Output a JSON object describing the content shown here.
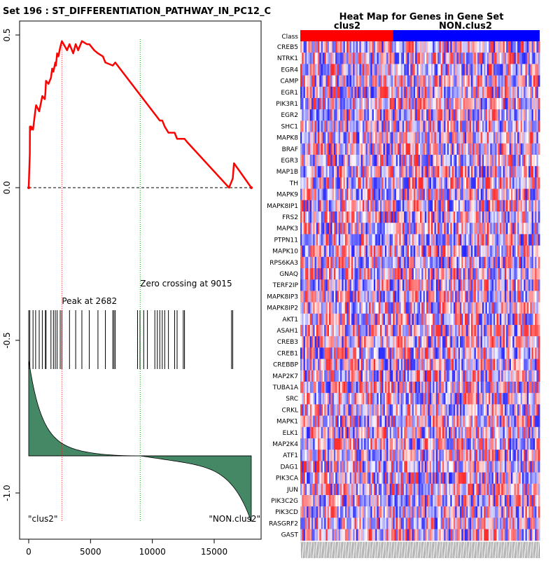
{
  "chart_data": [
    {
      "type": "line",
      "title": "Set  196 : ST_DIFFERENTIATION_PATHWAY_IN_PC12_C",
      "xlabel": "",
      "ylabel": "",
      "xlim": [
        0,
        18000
      ],
      "ylim": [
        -1.15,
        0.5
      ],
      "x_ticks": [
        0,
        5000,
        10000,
        15000
      ],
      "y_ticks": [
        0.5,
        0.0,
        -0.5,
        -1.0
      ],
      "y_tick_labels": [
        "0.5",
        "0.0",
        "-0.5",
        "-1.0"
      ],
      "enrichment_score": {
        "x": [
          0,
          90,
          100,
          150,
          190,
          200,
          350,
          560,
          600,
          850,
          1100,
          1300,
          1350,
          1400,
          1600,
          1800,
          1900,
          2000,
          2100,
          2150,
          2200,
          2300,
          2400,
          2550,
          2682,
          3100,
          3300,
          3600,
          3800,
          4000,
          4300,
          4700,
          4900,
          5300,
          5600,
          6000,
          6200,
          6800,
          7000,
          10600,
          10800,
          11000,
          11300,
          11800,
          12000,
          12500,
          12600,
          12800,
          16200,
          16500,
          16600,
          18000
        ],
        "y": [
          0.0,
          0.11,
          0.2,
          0.2,
          0.19,
          0.2,
          0.19,
          0.26,
          0.27,
          0.25,
          0.3,
          0.29,
          0.31,
          0.35,
          0.34,
          0.36,
          0.39,
          0.38,
          0.4,
          0.41,
          0.4,
          0.44,
          0.43,
          0.46,
          0.48,
          0.45,
          0.47,
          0.44,
          0.47,
          0.45,
          0.48,
          0.47,
          0.47,
          0.45,
          0.44,
          0.43,
          0.41,
          0.4,
          0.41,
          0.22,
          0.22,
          0.2,
          0.18,
          0.18,
          0.16,
          0.16,
          0.16,
          0.15,
          0.0,
          0.03,
          0.08,
          0.0
        ]
      },
      "zero_line": 0.0,
      "peak": {
        "x": 2682,
        "label": "Peak at 2682"
      },
      "zero_crossing": {
        "x": 9015,
        "label": "Zero crossing at 9015"
      },
      "hit_positions": [
        0,
        90,
        350,
        560,
        850,
        1100,
        1350,
        1400,
        1800,
        2000,
        2150,
        2300,
        2550,
        2682,
        3300,
        3800,
        4300,
        4900,
        5600,
        6200,
        6800,
        6900,
        7000,
        8800,
        9000,
        9300,
        9600,
        10200,
        10400,
        10600,
        10800,
        11000,
        11300,
        11800,
        12000,
        12500,
        12600,
        16400,
        16500
      ],
      "ranked_metric": {
        "start": 0.3,
        "mid_zero_at": 9015,
        "end": -0.95
      },
      "group_labels": [
        "\"clus2\"",
        "\"NON.clus2\""
      ],
      "colors": {
        "es_line": "#ff0000",
        "peak_line": "#ff0000",
        "zero_cross_line": "#00aa00",
        "metric_fill": "#448866",
        "hits": "#000000"
      }
    },
    {
      "type": "heatmap",
      "title": "Heat Map for Genes in Gene Set",
      "class_row_label": "Class",
      "classes": [
        {
          "name": "clus2",
          "color": "#ff0000"
        },
        {
          "name": "NON.clus2",
          "color": "#0000ff"
        }
      ],
      "genes": [
        "CREB5",
        "NTRK1",
        "EGR4",
        "CAMP",
        "EGR1",
        "PIK3R1",
        "EGR2",
        "SHC1",
        "MAPK8",
        "BRAF",
        "EGR3",
        "MAP1B",
        "TH",
        "MAPK9",
        "MAPK8IP1",
        "FRS2",
        "MAPK3",
        "PTPN11",
        "MAPK10",
        "RPS6KA3",
        "GNAQ",
        "TERF2IP",
        "MAPK8IP3",
        "MAPK8IP2",
        "AKT1",
        "ASAH1",
        "CREB3",
        "CREB1",
        "CREBBP",
        "MAP2K7",
        "TUBA1A",
        "SRC",
        "CRKL",
        "MAPK1",
        "ELK1",
        "MAP2K4",
        "ATF1",
        "DAG1",
        "PIK3CA",
        "JUN",
        "PIK3C2G",
        "PIK3CD",
        "RASGRF2",
        "GAST"
      ],
      "color_scale": {
        "high": "#ff0000",
        "mid": "#ffffff",
        "low": "#0000ff"
      }
    }
  ]
}
